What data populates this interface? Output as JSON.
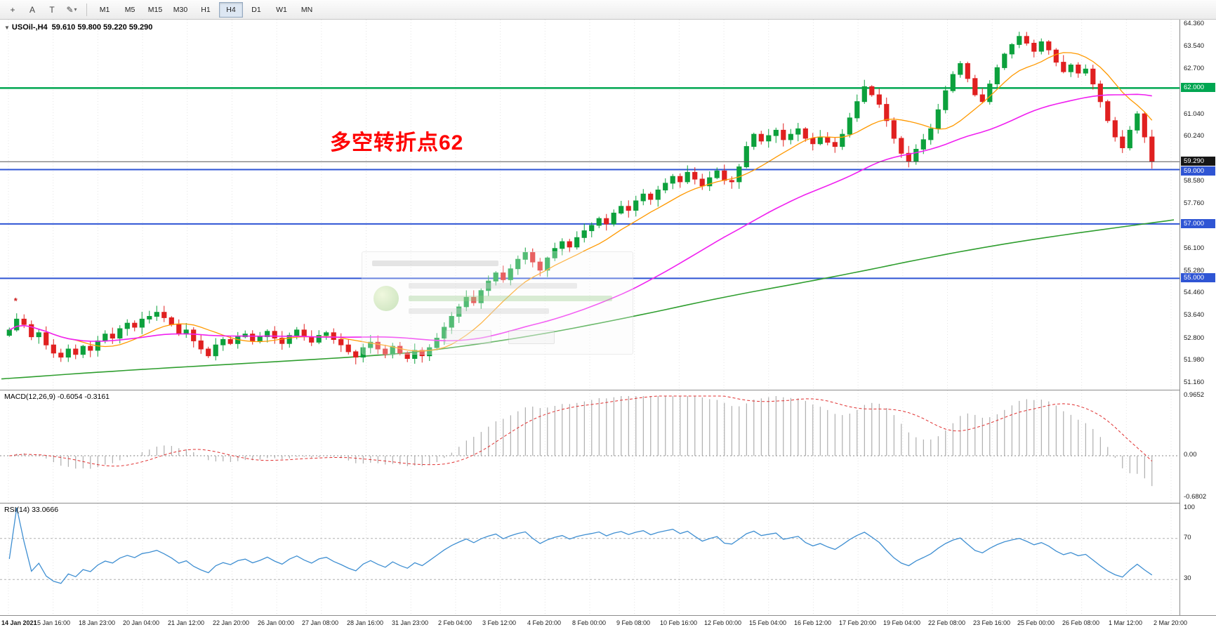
{
  "toolbar": {
    "tools": [
      {
        "name": "crosshair",
        "glyph": "+"
      },
      {
        "name": "text-label",
        "glyph": "A"
      },
      {
        "name": "text-box",
        "glyph": "T"
      },
      {
        "name": "draw-tools",
        "glyph": "✎",
        "caret": "▾"
      }
    ],
    "timeframes": [
      "M1",
      "M5",
      "M15",
      "M30",
      "H1",
      "H4",
      "D1",
      "W1",
      "MN"
    ],
    "active": "H4"
  },
  "chart": {
    "collapse_icon": "▼",
    "title": "USOil-,H4",
    "ohlc": "59.610 59.800 59.220 59.290",
    "annotation_text": "多空转折点62"
  },
  "macd": {
    "label": "MACD(12,26,9) -0.6054 -0.3161"
  },
  "rsi": {
    "label": "RSI(14) 33.0666"
  },
  "chart_data": {
    "type": "candlestick",
    "symbol": "USOil-",
    "timeframe": "H4",
    "colors": {
      "bull": "#0ca13c",
      "bear": "#e02020"
    },
    "x_labels": [
      "14 Jan 2021",
      "15 Jan 16:00",
      "18 Jan 23:00",
      "20 Jan 04:00",
      "21 Jan 12:00",
      "22 Jan 20:00",
      "26 Jan 00:00",
      "27 Jan 08:00",
      "28 Jan 16:00",
      "31 Jan 23:00",
      "2 Feb 04:00",
      "3 Feb 12:00",
      "4 Feb 20:00",
      "8 Feb 00:00",
      "9 Feb 08:00",
      "10 Feb 16:00",
      "12 Feb 00:00",
      "15 Feb 04:00",
      "16 Feb 12:00",
      "17 Feb 20:00",
      "19 Feb 04:00",
      "22 Feb 08:00",
      "23 Feb 16:00",
      "25 Feb 00:00",
      "26 Feb 08:00",
      "1 Mar 12:00",
      "2 Mar 20:00"
    ],
    "first_open": 52.9,
    "closes": [
      53.1,
      53.5,
      53.3,
      52.85,
      53.0,
      52.55,
      52.25,
      52.1,
      52.4,
      52.2,
      52.5,
      52.35,
      52.7,
      52.95,
      52.8,
      53.15,
      53.35,
      53.2,
      53.5,
      53.6,
      53.75,
      53.55,
      53.3,
      52.95,
      53.1,
      52.7,
      52.4,
      52.15,
      52.55,
      52.75,
      52.6,
      52.85,
      52.95,
      52.7,
      52.85,
      53.05,
      52.8,
      52.6,
      52.9,
      53.1,
      52.85,
      52.65,
      52.9,
      53.0,
      52.75,
      52.55,
      52.3,
      52.1,
      52.45,
      52.65,
      52.4,
      52.2,
      52.5,
      52.25,
      52.05,
      52.35,
      52.15,
      52.45,
      52.8,
      53.2,
      53.6,
      53.95,
      54.3,
      54.1,
      54.55,
      54.9,
      55.2,
      54.95,
      55.35,
      55.7,
      55.95,
      55.6,
      55.3,
      55.75,
      56.1,
      56.35,
      56.15,
      56.5,
      56.75,
      56.95,
      57.2,
      57.0,
      57.4,
      57.65,
      57.5,
      57.85,
      58.1,
      57.9,
      58.25,
      58.5,
      58.75,
      58.55,
      58.9,
      58.65,
      58.4,
      58.7,
      58.95,
      58.6,
      58.55,
      59.1,
      59.85,
      60.3,
      60.05,
      60.25,
      60.45,
      60.1,
      60.3,
      60.5,
      60.15,
      59.95,
      60.2,
      60.0,
      59.85,
      60.3,
      60.9,
      61.5,
      62.05,
      61.75,
      61.4,
      60.8,
      60.15,
      59.6,
      59.3,
      59.75,
      60.1,
      60.5,
      61.2,
      61.9,
      62.5,
      62.9,
      62.35,
      61.75,
      61.5,
      62.15,
      62.75,
      63.25,
      63.6,
      63.9,
      63.65,
      63.35,
      63.7,
      63.4,
      62.95,
      62.6,
      62.85,
      62.55,
      62.7,
      62.15,
      61.5,
      60.8,
      60.2,
      59.8,
      60.45,
      61.05,
      60.2,
      59.29
    ],
    "price_axis": {
      "min": 51.16,
      "max": 64.36,
      "ticks": [
        {
          "v": 64.36,
          "label": "64.360"
        },
        {
          "v": 63.54,
          "label": "63.540"
        },
        {
          "v": 62.7,
          "label": "62.700"
        },
        {
          "v": 61.04,
          "label": "61.040"
        },
        {
          "v": 60.24,
          "label": "60.240"
        },
        {
          "v": 58.58,
          "label": "58.580"
        },
        {
          "v": 57.76,
          "label": "57.760"
        },
        {
          "v": 56.1,
          "label": "56.100"
        },
        {
          "v": 55.28,
          "label": "55.280"
        },
        {
          "v": 54.46,
          "label": "54.460"
        },
        {
          "v": 53.64,
          "label": "53.640"
        },
        {
          "v": 52.8,
          "label": "52.800"
        },
        {
          "v": 51.98,
          "label": "51.980"
        },
        {
          "v": 51.16,
          "label": "51.160"
        }
      ]
    },
    "levels": [
      {
        "price": 62.0,
        "label": "62.000",
        "color": "#00a651",
        "width": 2.5
      },
      {
        "price": 59.0,
        "label": "59.000",
        "color": "#2f55d4",
        "width": 2
      },
      {
        "price": 57.0,
        "label": "57.000",
        "color": "#2f55d4",
        "width": 2
      },
      {
        "price": 55.0,
        "label": "55.000",
        "color": "#2f55d4",
        "width": 2
      }
    ],
    "current_price": 59.29,
    "current_price_label": "59.290",
    "marker": {
      "bar": 1,
      "price": 54.05,
      "glyph": "*",
      "color": "#cc2020"
    },
    "overlays": {
      "ma_fast": {
        "color": "#ff9900",
        "period": 10
      },
      "ma_mid": {
        "color": "#f020f0",
        "period": 40
      },
      "ma_slow": {
        "color": "#2f9e2f",
        "anchors": [
          [
            0,
            51.3
          ],
          [
            0.1,
            51.6
          ],
          [
            0.2,
            51.85
          ],
          [
            0.3,
            52.1
          ],
          [
            0.36,
            52.3
          ],
          [
            0.45,
            52.85
          ],
          [
            0.54,
            53.6
          ],
          [
            0.62,
            54.35
          ],
          [
            0.71,
            55.05
          ],
          [
            0.8,
            55.85
          ],
          [
            0.88,
            56.45
          ],
          [
            1.0,
            57.15
          ]
        ]
      }
    },
    "indicators": {
      "macd": {
        "fast": 12,
        "slow": 26,
        "signal": 9,
        "value_main": -0.6054,
        "value_signal": -0.3161,
        "axis": {
          "max": 0.9652,
          "min": -0.6802
        },
        "ticks": [
          {
            "v": 0.9652,
            "label": "0.9652"
          },
          {
            "v": 0.0,
            "label": "0.00"
          },
          {
            "v": -0.6802,
            "label": "-0.6802"
          }
        ]
      },
      "rsi": {
        "period": 14,
        "value": 33.0666,
        "levels": [
          70,
          30
        ],
        "ticks": [
          {
            "v": 100,
            "label": "100"
          },
          {
            "v": 70,
            "label": "70"
          },
          {
            "v": 30,
            "label": "30"
          }
        ]
      }
    }
  }
}
